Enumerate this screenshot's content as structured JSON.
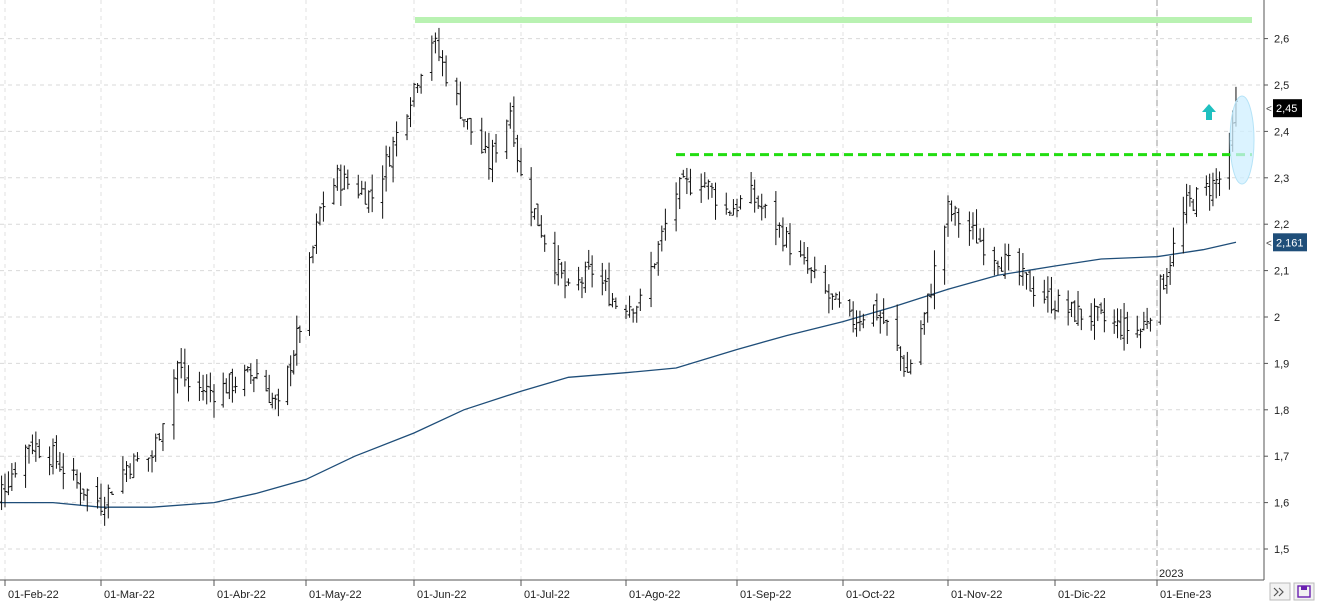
{
  "chart_data": {
    "type": "ohlc",
    "title": "",
    "xlabel": "",
    "ylabel": "",
    "ylim": [
      1.42,
      2.68
    ],
    "grid": true,
    "y_ticks": [
      "1,5",
      "1,6",
      "1,7",
      "1,8",
      "1,9",
      "2",
      "2,1",
      "2,2",
      "2,3",
      "2,4",
      "2,5",
      "2,6"
    ],
    "x_ticks": [
      "01-Feb-22",
      "01-Mar-22",
      "01-Abr-22",
      "01-May-22",
      "01-Jun-22",
      "01-Jul-22",
      "01-Ago-22",
      "01-Sep-22",
      "01-Oct-22",
      "01-Nov-22",
      "01-Dic-22",
      "01-Ene-23"
    ],
    "year_marker": "2023",
    "last_price_label": "2,45",
    "moving_average_label": "2,161",
    "resistance_high": 2.64,
    "breakout_level": 2.35,
    "moving_average": {
      "x": [
        "2022-01-25",
        "2022-02-01",
        "2022-02-15",
        "2022-03-01",
        "2022-03-15",
        "2022-04-01",
        "2022-04-15",
        "2022-05-01",
        "2022-05-15",
        "2022-06-01",
        "2022-06-15",
        "2022-07-01",
        "2022-07-15",
        "2022-08-01",
        "2022-08-15",
        "2022-09-01",
        "2022-09-15",
        "2022-10-01",
        "2022-10-15",
        "2022-11-01",
        "2022-11-15",
        "2022-12-01",
        "2022-12-15",
        "2023-01-01",
        "2023-01-15",
        "2023-01-25"
      ],
      "values": [
        1.6,
        1.6,
        1.6,
        1.59,
        1.59,
        1.6,
        1.62,
        1.65,
        1.7,
        1.75,
        1.8,
        1.84,
        1.87,
        1.88,
        1.89,
        1.93,
        1.96,
        1.99,
        2.02,
        2.06,
        2.09,
        2.11,
        2.125,
        2.13,
        2.145,
        2.161
      ]
    },
    "ohlc_anchors": {
      "x": [
        "2022-01-25",
        "2022-02-01",
        "2022-02-08",
        "2022-02-15",
        "2022-02-22",
        "2022-03-01",
        "2022-03-08",
        "2022-03-15",
        "2022-03-22",
        "2022-03-25",
        "2022-04-01",
        "2022-04-08",
        "2022-04-15",
        "2022-04-22",
        "2022-04-29",
        "2022-05-05",
        "2022-05-10",
        "2022-05-20",
        "2022-05-25",
        "2022-06-01",
        "2022-06-06",
        "2022-06-15",
        "2022-06-22",
        "2022-06-28",
        "2022-07-01",
        "2022-07-08",
        "2022-07-15",
        "2022-07-22",
        "2022-07-29",
        "2022-08-05",
        "2022-08-10",
        "2022-08-15",
        "2022-08-22",
        "2022-08-29",
        "2022-09-05",
        "2022-09-12",
        "2022-09-19",
        "2022-09-26",
        "2022-10-03",
        "2022-10-10",
        "2022-10-14",
        "2022-10-20",
        "2022-10-25",
        "2022-11-01",
        "2022-11-08",
        "2022-11-15",
        "2022-11-22",
        "2022-11-29",
        "2022-12-06",
        "2022-12-13",
        "2022-12-20",
        "2022-12-27",
        "2023-01-03",
        "2023-01-10",
        "2023-01-17",
        "2023-01-22",
        "2023-01-25"
      ],
      "values": [
        1.57,
        1.64,
        1.73,
        1.7,
        1.64,
        1.6,
        1.68,
        1.7,
        1.9,
        1.85,
        1.84,
        1.86,
        1.88,
        1.8,
        1.98,
        2.23,
        2.3,
        2.26,
        2.35,
        2.5,
        2.6,
        2.43,
        2.33,
        2.45,
        2.3,
        2.17,
        2.05,
        2.1,
        2.03,
        2.03,
        2.15,
        2.27,
        2.3,
        2.23,
        2.26,
        2.2,
        2.12,
        2.05,
        1.99,
        2.02,
        1.98,
        1.88,
        2.0,
        2.23,
        2.18,
        2.13,
        2.08,
        2.04,
        2.01,
        2.0,
        1.98,
        1.97,
        2.08,
        2.24,
        2.28,
        2.31,
        2.45
      ]
    }
  }
}
